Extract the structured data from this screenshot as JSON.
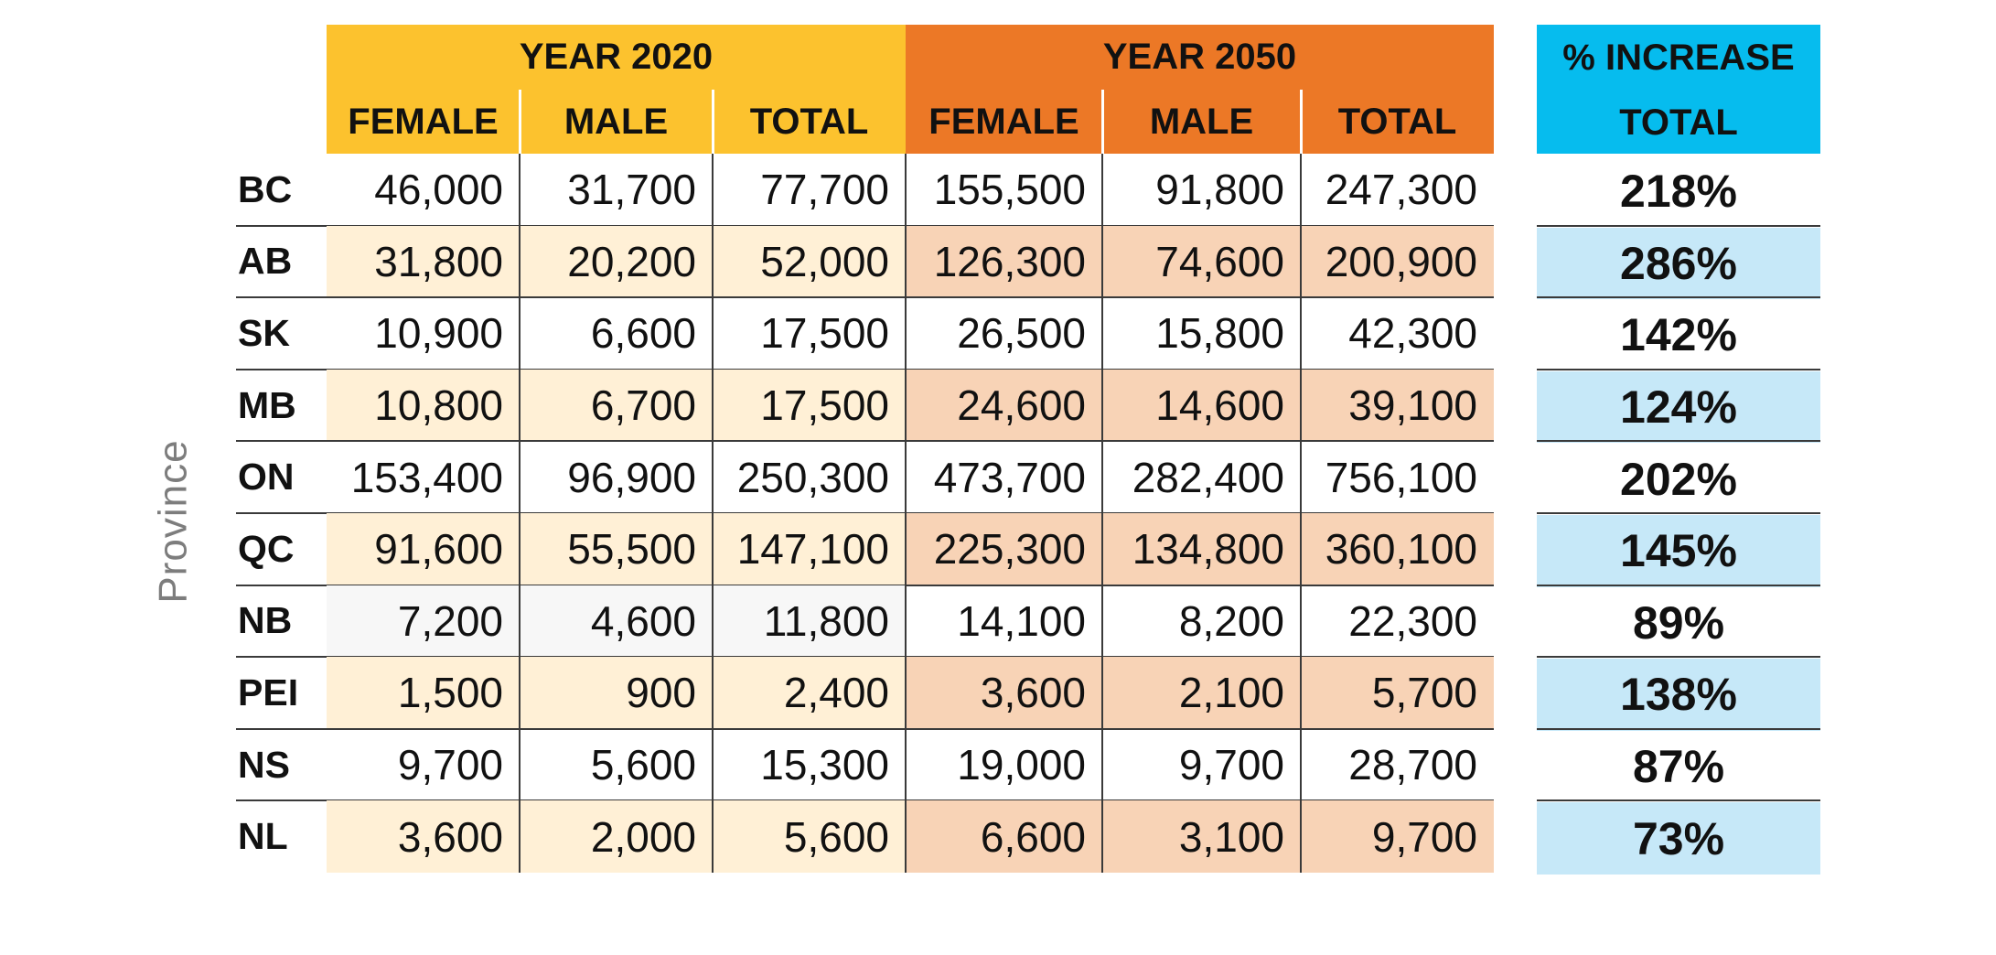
{
  "chart_data": {
    "type": "table",
    "row_axis_label": "Province",
    "groups": [
      {
        "label": "YEAR 2020",
        "columns": [
          "FEMALE",
          "MALE",
          "TOTAL"
        ],
        "header_color": "#fcc22e",
        "fill_color": "#fff0d6"
      },
      {
        "label": "YEAR 2050",
        "columns": [
          "FEMALE",
          "MALE",
          "TOTAL"
        ],
        "header_color": "#ec7826",
        "fill_color": "#f8d3b6"
      },
      {
        "label": "% INCREASE",
        "columns": [
          "TOTAL"
        ],
        "header_color": "#06bcee",
        "fill_color": "#c6e8f8"
      }
    ],
    "rows": [
      {
        "province": "BC",
        "values": [
          "46,000",
          "31,700",
          "77,700",
          "155,500",
          "91,800",
          "247,300"
        ],
        "increase": "218%"
      },
      {
        "province": "AB",
        "values": [
          "31,800",
          "20,200",
          "52,000",
          "126,300",
          "74,600",
          "200,900"
        ],
        "increase": "286%"
      },
      {
        "province": "SK",
        "values": [
          "10,900",
          "6,600",
          "17,500",
          "26,500",
          "15,800",
          "42,300"
        ],
        "increase": "142%"
      },
      {
        "province": "MB",
        "values": [
          "10,800",
          "6,700",
          "17,500",
          "24,600",
          "14,600",
          "39,100"
        ],
        "increase": "124%"
      },
      {
        "province": "ON",
        "values": [
          "153,400",
          "96,900",
          "250,300",
          "473,700",
          "282,400",
          "756,100"
        ],
        "increase": "202%"
      },
      {
        "province": "QC",
        "values": [
          "91,600",
          "55,500",
          "147,100",
          "225,300",
          "134,800",
          "360,100"
        ],
        "increase": "145%"
      },
      {
        "province": "NB",
        "values": [
          "7,200",
          "4,600",
          "11,800",
          "14,100",
          "8,200",
          "22,300"
        ],
        "increase": "89%"
      },
      {
        "province": "PEI",
        "values": [
          "1,500",
          "900",
          "2,400",
          "3,600",
          "2,100",
          "5,700"
        ],
        "increase": "138%"
      },
      {
        "province": "NS",
        "values": [
          "9,700",
          "5,600",
          "15,300",
          "19,000",
          "9,700",
          "28,700"
        ],
        "increase": "87%"
      },
      {
        "province": "NL",
        "values": [
          "3,600",
          "2,000",
          "5,600",
          "6,600",
          "3,100",
          "9,700"
        ],
        "increase": "73%"
      }
    ],
    "nb_2020_fill": "#f7f7f7"
  }
}
